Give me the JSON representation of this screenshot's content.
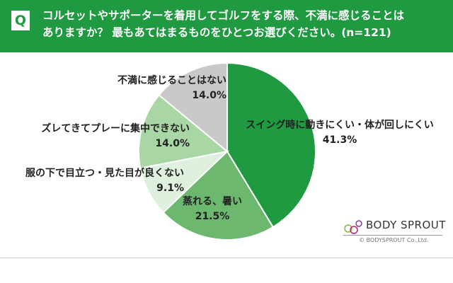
{
  "header": {
    "q_badge": "Q",
    "line1": "コルセットやサポーターを着用してゴルフをする際、不満に感じることは",
    "line2": "ありますか？ 最もあてはまるものをひとつお選びください。(n=121)"
  },
  "chart_data": {
    "type": "pie",
    "title": "コルセットやサポーターを着用してゴルフをする際、不満に感じることはありますか？ 最もあてはまるものをひとつお選びください。(n=121)",
    "start": "top",
    "direction": "clockwise",
    "slices": [
      {
        "label": "スイング時に動きにくい・体が回しにくい",
        "value": 41.3,
        "value_label": "41.3%",
        "color": "#1f9a40"
      },
      {
        "label": "蒸れる、暑い",
        "value": 21.5,
        "value_label": "21.5%",
        "color": "#6cb86f"
      },
      {
        "label": "服の下で目立つ・見た目が良くない",
        "value": 9.1,
        "value_label": "9.1%",
        "color": "#dff0de"
      },
      {
        "label": "ズレてきてプレーに集中できない",
        "value": 14.0,
        "value_label": "14.0%",
        "color": "#a8d6a5"
      },
      {
        "label": "不満に感じることはない",
        "value": 14.0,
        "value_label": "14.0%",
        "color": "#c9c9c9"
      }
    ]
  },
  "logo": {
    "name": "BODY SPROUT",
    "copyright": "© BODYSPROUT Co.,Ltd."
  }
}
